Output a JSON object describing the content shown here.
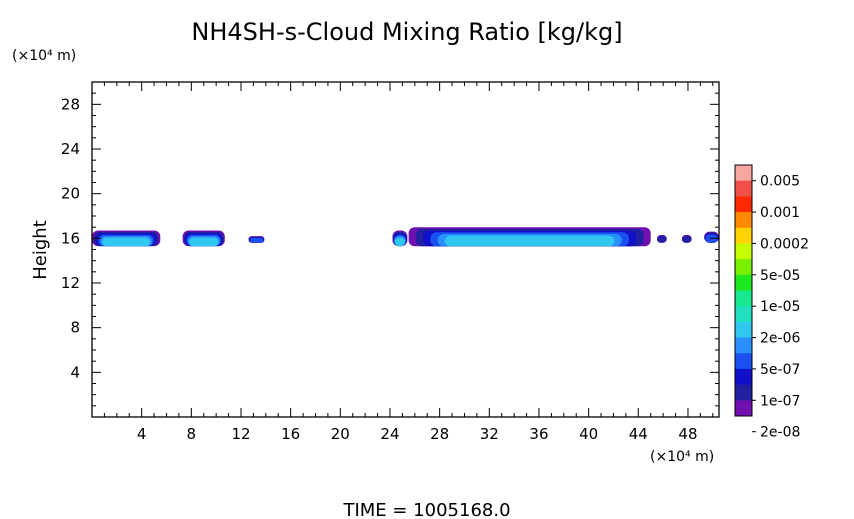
{
  "chart_data": {
    "type": "heatmap",
    "title": "NH4SH-s-Cloud Mixing Ratio [kg/kg]",
    "ylabel": "Height",
    "y_unit": "(×10⁴ m)",
    "x_unit": "(×10⁴ m)",
    "xlim": [
      0,
      50.5
    ],
    "ylim": [
      0,
      30
    ],
    "xticks": [
      4,
      8,
      12,
      16,
      20,
      24,
      28,
      32,
      36,
      40,
      44,
      48
    ],
    "yticks": [
      4,
      8,
      12,
      16,
      20,
      24,
      28
    ],
    "footer": "TIME = 1005168.0",
    "colorbar": {
      "labels": [
        "0.005",
        "0.001",
        "0.0002",
        "5e-05",
        "1e-05",
        "2e-06",
        "5e-07",
        "1e-07",
        "2e-08"
      ],
      "colors": [
        "#f7a6a0",
        "#f0504a",
        "#ff2a00",
        "#ff8a00",
        "#ffd200",
        "#c8ff00",
        "#78f000",
        "#1ee81e",
        "#18e890",
        "#20e0c0",
        "#30c8f0",
        "#2a90ff",
        "#1a50f0",
        "#1010c8",
        "#2020a0",
        "#7010b0"
      ]
    },
    "cloud_cells": [
      {
        "x0": 0.0,
        "x1": 5.5,
        "y0": 15.3,
        "y1": 16.7,
        "peak": "1e-05"
      },
      {
        "x0": 7.3,
        "x1": 10.7,
        "y0": 15.3,
        "y1": 16.7,
        "peak": "1e-05"
      },
      {
        "x0": 12.6,
        "x1": 13.9,
        "y0": 15.6,
        "y1": 16.2,
        "peak": "2e-06"
      },
      {
        "x0": 24.2,
        "x1": 25.4,
        "y0": 15.3,
        "y1": 16.7,
        "peak": "1e-05"
      },
      {
        "x0": 25.5,
        "x1": 45.0,
        "y0": 15.3,
        "y1": 17.0,
        "peak": "1e-05"
      },
      {
        "x0": 45.5,
        "x1": 46.3,
        "y0": 15.6,
        "y1": 16.3,
        "peak": "5e-07"
      },
      {
        "x0": 47.5,
        "x1": 48.3,
        "y0": 15.6,
        "y1": 16.3,
        "peak": "5e-07"
      },
      {
        "x0": 49.3,
        "x1": 50.5,
        "y0": 15.6,
        "y1": 16.6,
        "peak": "2e-06"
      }
    ]
  }
}
